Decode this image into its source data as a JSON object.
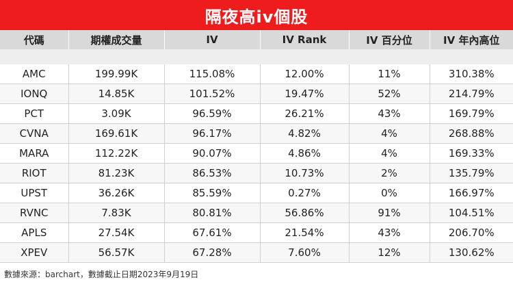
{
  "title": "隔夜高iv個股",
  "columns": [
    "代碼",
    "期權成交量",
    "IV",
    "IV Rank",
    "IV 百分位",
    "IV 年內高位"
  ],
  "rows": [
    [
      "AMC",
      "199.99K",
      "115.08%",
      "12.00%",
      "11%",
      "310.38%"
    ],
    [
      "IONQ",
      "14.85K",
      "101.52%",
      "19.47%",
      "52%",
      "214.79%"
    ],
    [
      "PCT",
      "3.09K",
      "96.59%",
      "26.21%",
      "43%",
      "169.79%"
    ],
    [
      "CVNA",
      "169.61K",
      "96.17%",
      "4.82%",
      "4%",
      "268.88%"
    ],
    [
      "MARA",
      "112.22K",
      "90.07%",
      "4.86%",
      "4%",
      "169.33%"
    ],
    [
      "RIOT",
      "81.23K",
      "86.53%",
      "10.73%",
      "2%",
      "135.79%"
    ],
    [
      "UPST",
      "36.26K",
      "85.59%",
      "0.27%",
      "0%",
      "166.97%"
    ],
    [
      "RVNC",
      "7.83K",
      "80.81%",
      "56.86%",
      "91%",
      "104.51%"
    ],
    [
      "APLS",
      "27.54K",
      "67.61%",
      "21.54%",
      "43%",
      "206.70%"
    ],
    [
      "XPEV",
      "56.57K",
      "67.28%",
      "7.60%",
      "12%",
      "130.62%"
    ]
  ],
  "footer": "數據來源：barchart，數據截止日期2023年9月19日",
  "colors": {
    "title_bg": "#ee1c1c",
    "header_bg": "#d9d9d9"
  }
}
